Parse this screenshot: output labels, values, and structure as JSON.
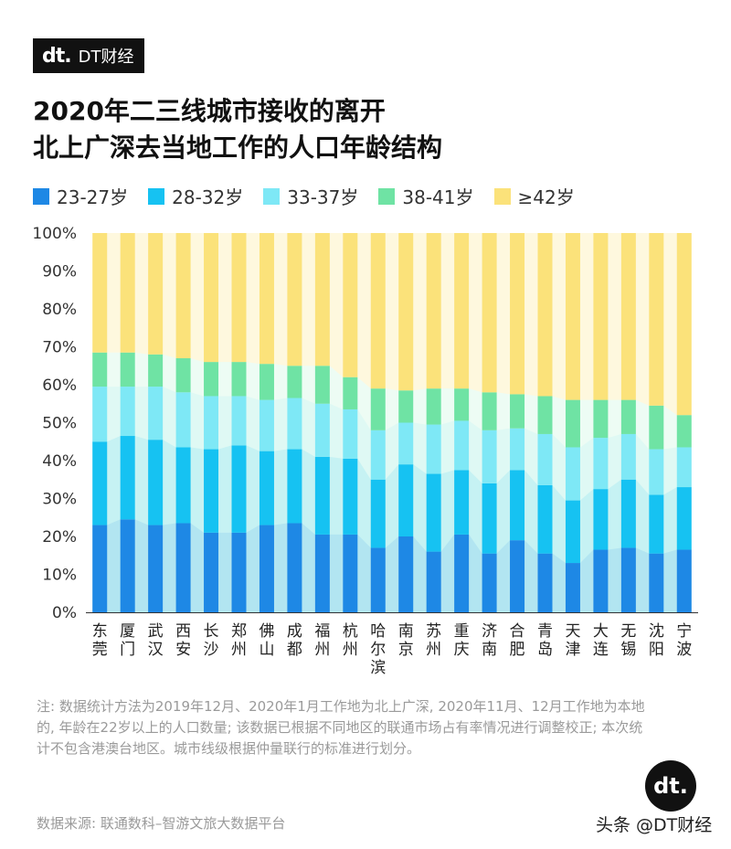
{
  "brand": {
    "logo_mark": "dt.",
    "logo_text": "DT财经"
  },
  "title_lines": [
    "2020年二三线城市接收的离开",
    "北上广深去当地工作的人口年龄结构"
  ],
  "colors": {
    "23-27": "#1e88e5",
    "28-32": "#16c2f2",
    "33-37": "#7ee8f6",
    "38-41": "#6fe3a4",
    "42plus": "#fbe27a"
  },
  "chart_data": {
    "type": "bar",
    "stacked": true,
    "ylim": [
      0,
      100
    ],
    "yticks": [
      "0%",
      "10%",
      "20%",
      "30%",
      "40%",
      "50%",
      "60%",
      "70%",
      "80%",
      "90%",
      "100%"
    ],
    "grid": false,
    "legend_placement": "top",
    "categories": [
      "东莞",
      "厦门",
      "武汉",
      "西安",
      "长沙",
      "郑州",
      "佛山",
      "成都",
      "福州",
      "杭州",
      "哈尔滨",
      "南京",
      "苏州",
      "重庆",
      "济南",
      "合肥",
      "青岛",
      "天津",
      "大连",
      "无锡",
      "沈阳",
      "宁波"
    ],
    "series": [
      {
        "name": "23-27岁",
        "color_key": "23-27",
        "values": [
          23,
          24.5,
          23,
          23.5,
          21,
          21,
          23,
          23.5,
          20.5,
          20.5,
          17,
          20,
          16,
          20.5,
          15.5,
          19,
          15.5,
          13,
          16.5,
          17,
          15.5,
          16.5
        ]
      },
      {
        "name": "28-32岁",
        "color_key": "28-32",
        "values": [
          22,
          22,
          22.5,
          20,
          22,
          23,
          19.5,
          19.5,
          20.5,
          20,
          18,
          19,
          20.5,
          17,
          18.5,
          18.5,
          18,
          16.5,
          16,
          18,
          15.5,
          16.5
        ]
      },
      {
        "name": "33-37岁",
        "color_key": "33-37",
        "values": [
          14.5,
          13,
          14,
          14.5,
          14,
          13,
          13.5,
          13.5,
          14,
          13,
          13,
          11,
          13,
          13,
          14,
          11,
          13.5,
          14,
          13.5,
          12,
          12,
          10.5
        ]
      },
      {
        "name": "38-41岁",
        "color_key": "38-41",
        "values": [
          9,
          9,
          8.5,
          9,
          9,
          9,
          9.5,
          8.5,
          10,
          8.5,
          11,
          8.5,
          9.5,
          8.5,
          10,
          9,
          10,
          12.5,
          10,
          9,
          11.5,
          8.5
        ]
      },
      {
        "name": "≥42岁",
        "color_key": "42plus",
        "values": [
          31.5,
          31.5,
          32,
          33,
          34,
          34,
          34.5,
          35,
          35,
          38,
          41,
          41.5,
          41,
          41,
          42,
          42.5,
          43,
          44,
          44,
          44,
          45.5,
          48
        ]
      }
    ]
  },
  "note": "注: 数据统计方法为2019年12月、2020年1月工作地为北上广深, 2020年11月、12月工作地为本地的, 年龄在22岁以上的人口数量; 该数据已根据不同地区的联通市场占有率情况进行调整校正; 本次统计不包含港澳台地区。城市线级根据仲量联行的标准进行划分。",
  "source": "数据来源: 联通数科–智游文旅大数据平台",
  "corner_badge": "dt.",
  "watermark_tag": "头条 @DT财经"
}
